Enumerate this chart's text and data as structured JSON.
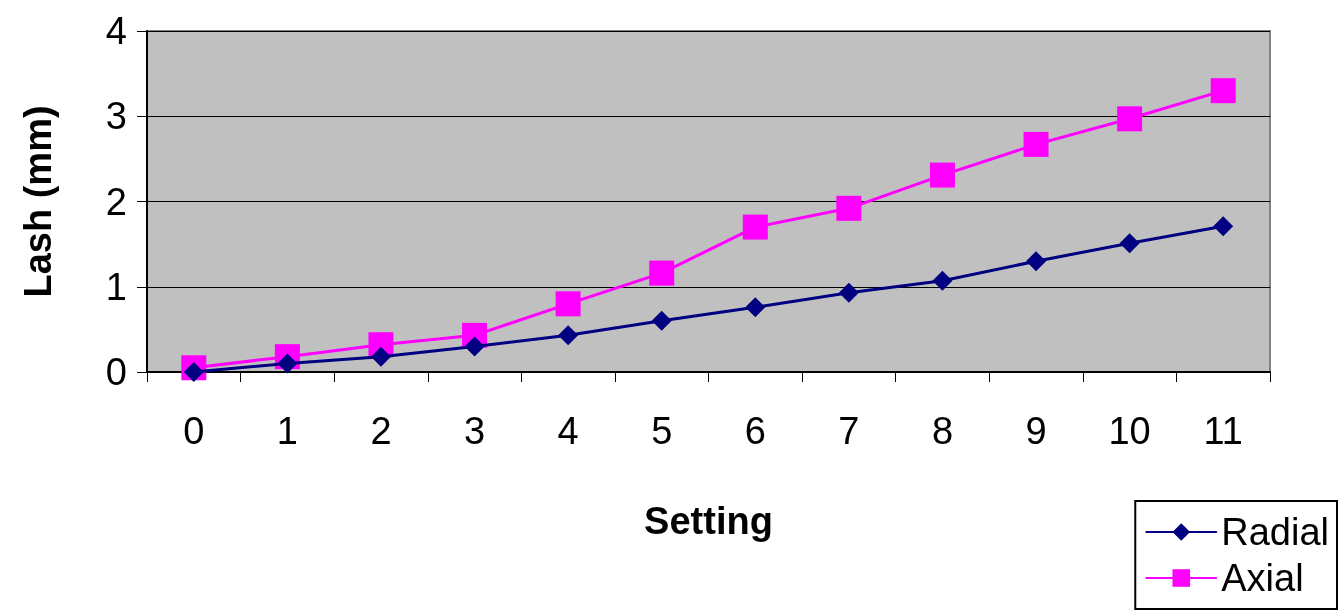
{
  "chart_data": {
    "type": "line",
    "xlabel": "Setting",
    "ylabel": "Lash (mm)",
    "categories": [
      "0",
      "1",
      "2",
      "3",
      "4",
      "5",
      "6",
      "7",
      "8",
      "9",
      "10",
      "11"
    ],
    "series": [
      {
        "name": "Radial",
        "color": "#000080",
        "marker": "diamond",
        "values": [
          0,
          0.1,
          0.18,
          0.3,
          0.43,
          0.6,
          0.76,
          0.93,
          1.07,
          1.3,
          1.51,
          1.71
        ]
      },
      {
        "name": "Axial",
        "color": "#ff00ff",
        "marker": "square",
        "values": [
          0.05,
          0.18,
          0.32,
          0.43,
          0.8,
          1.16,
          1.7,
          1.92,
          2.31,
          2.67,
          2.97,
          3.3
        ]
      }
    ],
    "ylim": [
      0,
      4
    ],
    "yticks": [
      0,
      1,
      2,
      3,
      4
    ],
    "grid": "y",
    "legend": "bottom right",
    "line_style": "solid"
  }
}
